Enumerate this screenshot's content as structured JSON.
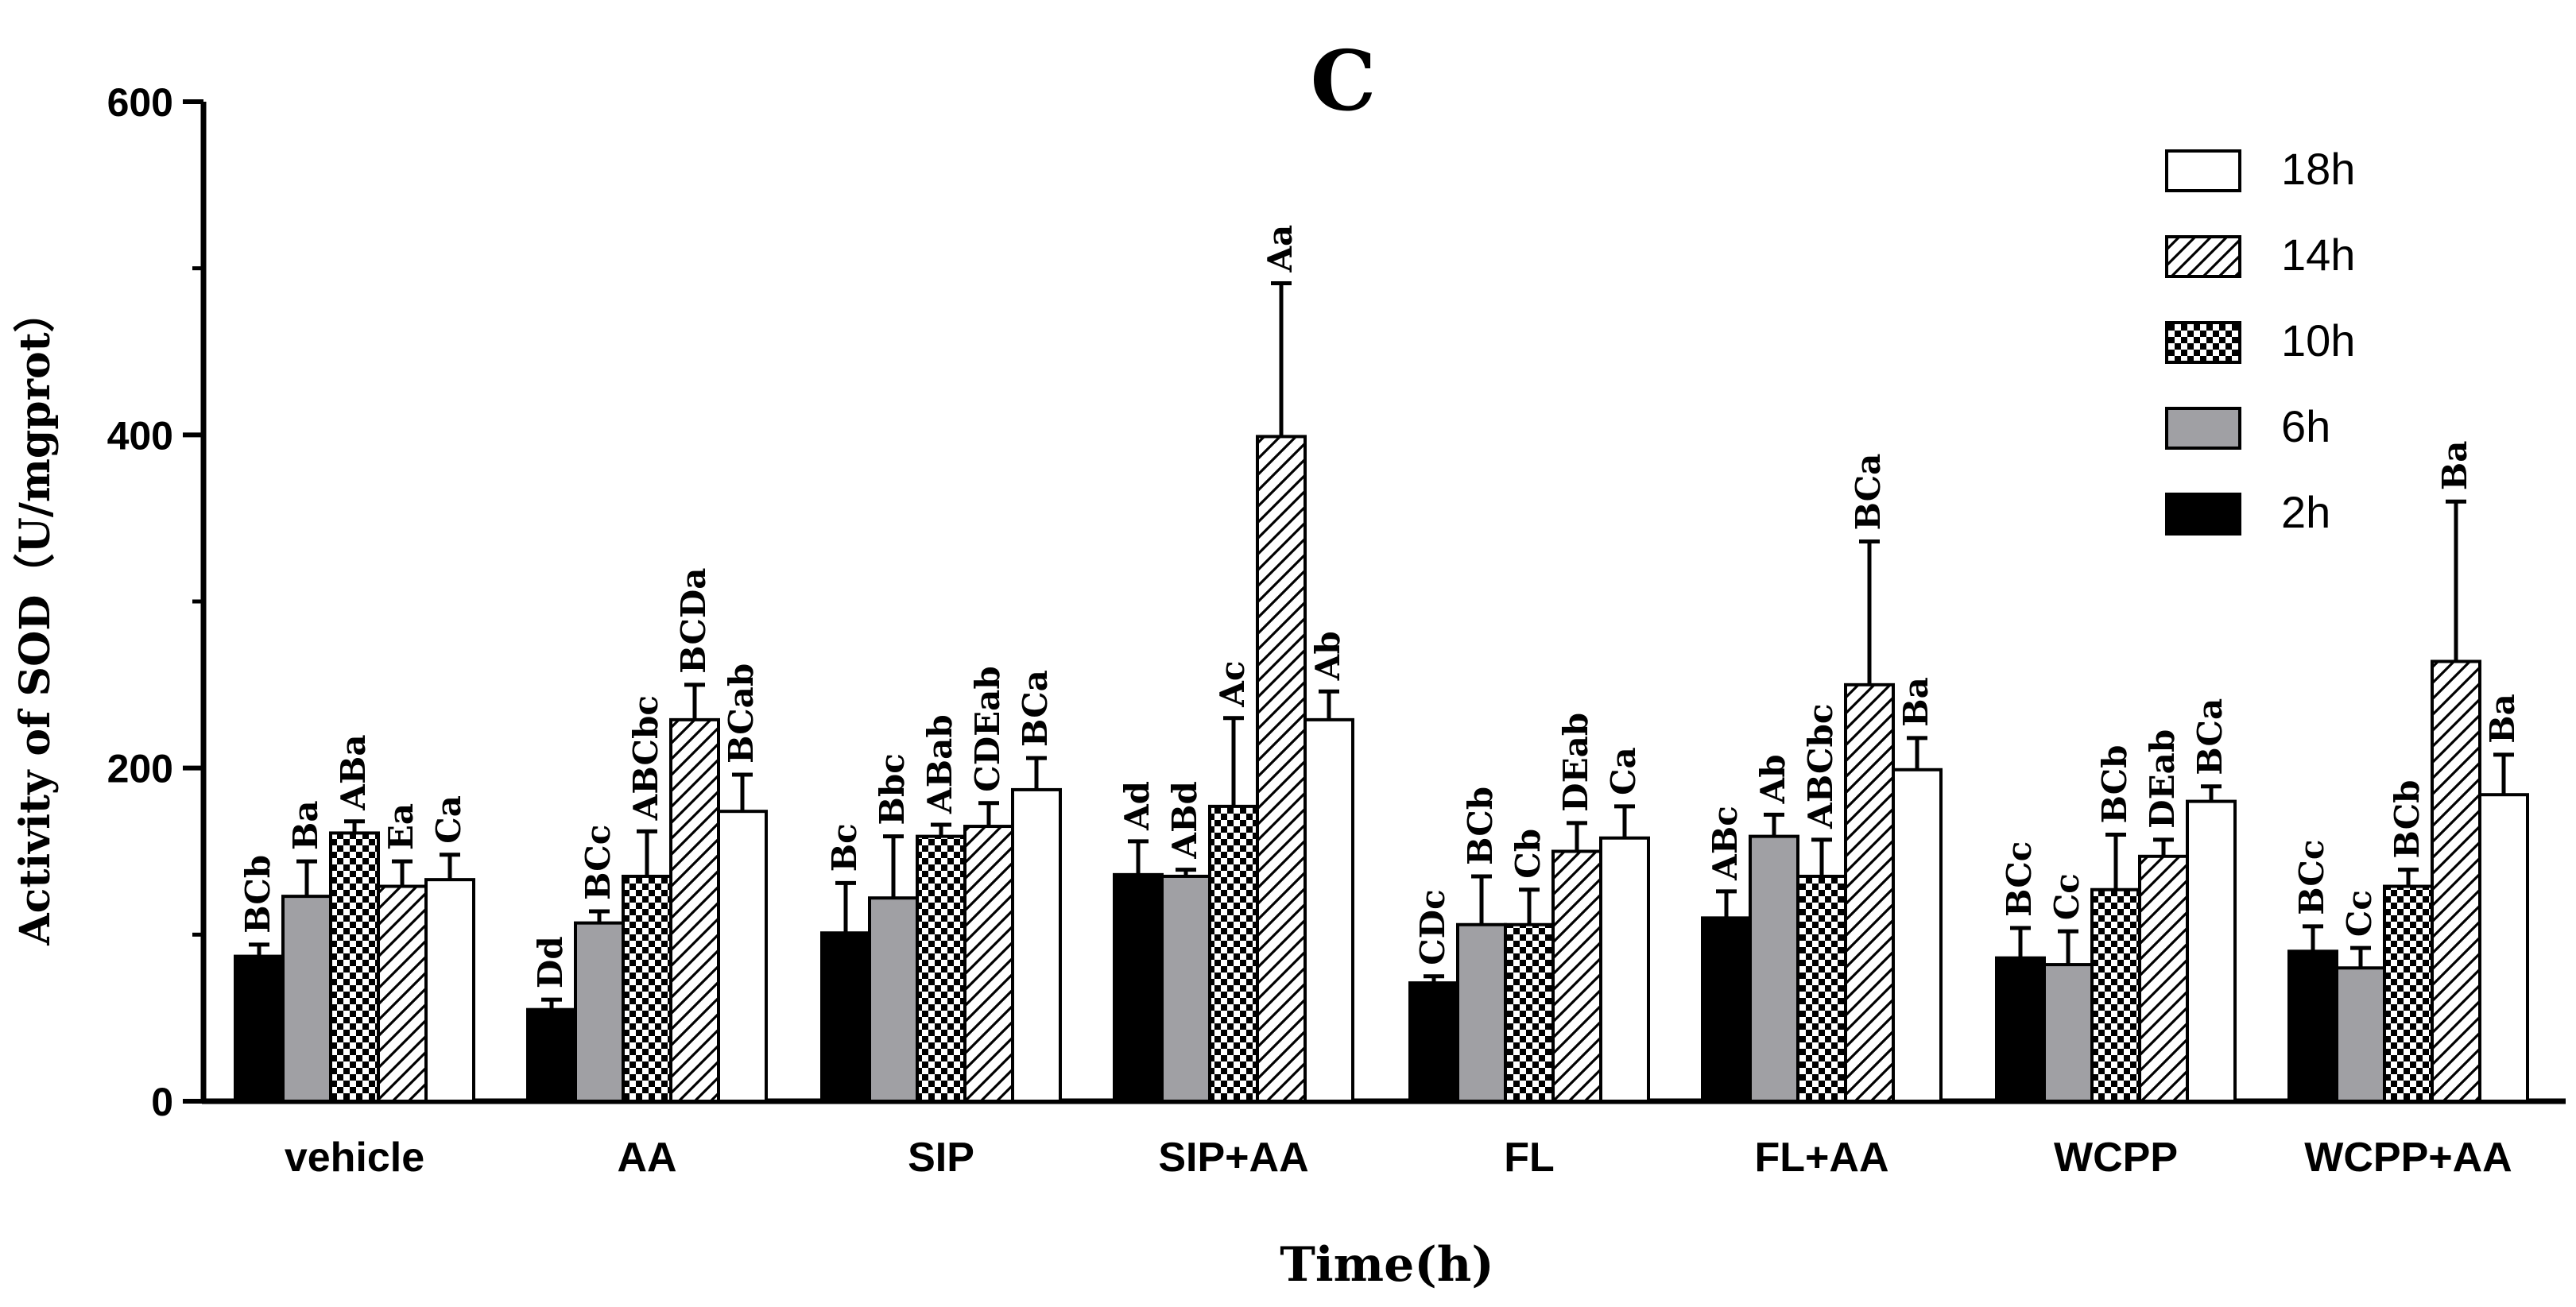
{
  "chart_data": {
    "type": "bar",
    "title": "C",
    "xlabel": "Time(h)",
    "ylabel": "Activity of SOD（U/mgprot）",
    "ylim": [
      0,
      600
    ],
    "yticks": [
      0,
      200,
      400,
      600
    ],
    "grid": false,
    "legend_position": "top-right",
    "categories": [
      "vehicle",
      "AA",
      "SIP",
      "SIP+AA",
      "FL",
      "FL+AA",
      "WCPP",
      "WCPP+AA"
    ],
    "series": [
      {
        "name": "2h",
        "fill": "black",
        "values": [
          87,
          55,
          101,
          136,
          71,
          110,
          86,
          90
        ],
        "errors": [
          7,
          6,
          30,
          20,
          4,
          16,
          18,
          15
        ],
        "labels": [
          "BCb",
          "Dd",
          "Bc",
          "Ad",
          "CDc",
          "ABc",
          "BCc",
          "BCc"
        ]
      },
      {
        "name": "6h",
        "fill": "gray",
        "values": [
          123,
          107,
          122,
          135,
          106,
          159,
          82,
          80
        ],
        "errors": [
          21,
          7,
          37,
          4,
          29,
          13,
          20,
          12
        ],
        "labels": [
          "Ba",
          "BCc",
          "Bbc",
          "ABd",
          "BCb",
          "Ab",
          "Cc",
          "Cc"
        ]
      },
      {
        "name": "10h",
        "fill": "checker",
        "values": [
          161,
          135,
          159,
          177,
          106,
          135,
          127,
          129
        ],
        "errors": [
          7,
          27,
          7,
          53,
          21,
          22,
          33,
          10
        ],
        "labels": [
          "ABa",
          "ABCbc",
          "ABab",
          "Ac",
          "Cb",
          "ABCbc",
          "BCb",
          "BCb"
        ]
      },
      {
        "name": "14h",
        "fill": "hatch",
        "values": [
          129,
          229,
          165,
          399,
          150,
          250,
          147,
          264
        ],
        "errors": [
          15,
          21,
          14,
          92,
          17,
          86,
          10,
          96
        ],
        "labels": [
          "Ea",
          "BCDa",
          "CDEab",
          "Aa",
          "DEab",
          "BCa",
          "DEab",
          "Ba"
        ]
      },
      {
        "name": "18h",
        "fill": "white",
        "values": [
          133,
          174,
          187,
          229,
          158,
          199,
          180,
          184
        ],
        "errors": [
          15,
          22,
          19,
          17,
          19,
          19,
          9,
          24
        ],
        "labels": [
          "Ca",
          "BCab",
          "BCa",
          "Ab",
          "Ca",
          "Ba",
          "BCa",
          "Ba"
        ]
      }
    ],
    "legend_order": [
      "18h",
      "14h",
      "10h",
      "6h",
      "2h"
    ]
  }
}
